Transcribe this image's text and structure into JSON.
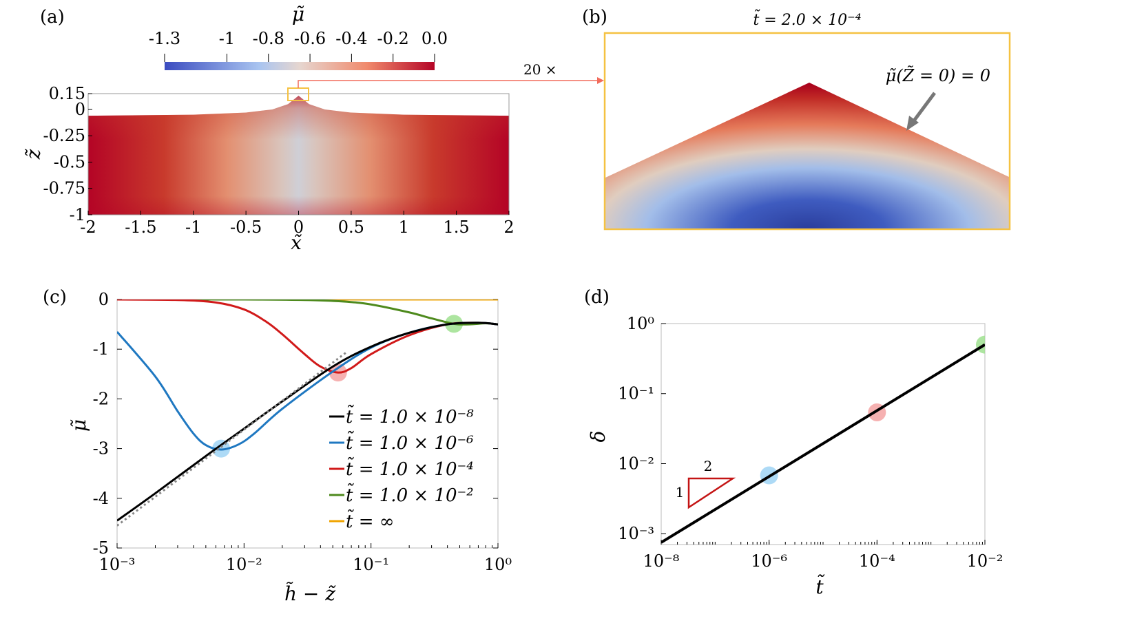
{
  "panels": {
    "a": {
      "label": "(a)"
    },
    "b": {
      "label": "(b)"
    },
    "c": {
      "label": "(c)"
    },
    "d": {
      "label": "(d)"
    }
  },
  "colors": {
    "black": "#000000",
    "blue": "#1f78c1",
    "red": "#d11a1a",
    "green": "#4e8a1d",
    "orange": "#f0a400",
    "cmap_low": "#3b4cc0",
    "cmap_mid": "#dddddd",
    "cmap_high": "#b40426",
    "highlight_box": "#f5c242",
    "arrow": "#f26b5b",
    "gray_arrow": "#777777"
  },
  "colorbar": {
    "title": "μ̃",
    "ticks": [
      "-1.3",
      "-1",
      "-0.8",
      "-0.6",
      "-0.4",
      "-0.2",
      "0.0"
    ],
    "min": -1.3,
    "max": 0.0
  },
  "annotations": {
    "zoom": "20 ×",
    "b_title": "t̃ = 2.0 × 10⁻⁴",
    "b_boundary": "μ̃(Z̃ = 0) = 0",
    "slope_run": "2",
    "slope_rise": "1"
  },
  "chart_data": [
    {
      "panel": "a",
      "type": "heatmap",
      "xlabel": "x̃",
      "ylabel": "z̃",
      "xlim": [
        -2,
        2
      ],
      "ylim": [
        -1,
        0.15
      ],
      "xticks": [
        "-2",
        "-1.5",
        "-1",
        "-0.5",
        "0",
        "0.5",
        "1",
        "1.5",
        "2"
      ],
      "yticks": [
        "0.15",
        "0",
        "-0.25",
        "-0.5",
        "-0.75",
        "-1"
      ],
      "surface": {
        "x": [
          -2,
          -1.5,
          -1,
          -0.5,
          -0.25,
          -0.1,
          0,
          0.1,
          0.25,
          0.5,
          1,
          1.5,
          2
        ],
        "z": [
          -0.06,
          -0.055,
          -0.05,
          -0.03,
          0.0,
          0.05,
          0.13,
          0.05,
          0.0,
          -0.03,
          -0.05,
          -0.055,
          -0.06
        ]
      }
    },
    {
      "panel": "b",
      "type": "heatmap",
      "title": "t̃ = 2.0 × 10⁻⁴"
    },
    {
      "panel": "c",
      "type": "line",
      "xscale": "log",
      "xlim": [
        0.001,
        1
      ],
      "ylim": [
        -5,
        0
      ],
      "xlabel": "h̃ − z̃",
      "ylabel": "μ̃",
      "xticks": [
        "10⁻³",
        "10⁻²",
        "10⁻¹",
        "10⁰"
      ],
      "yticks": [
        "0",
        "-1",
        "-2",
        "-3",
        "-4",
        "-5"
      ],
      "legend_position": "lower-right",
      "series": [
        {
          "name": "t̃ = 1.0 × 10⁻⁸",
          "color": "#000000",
          "x": [
            0.001,
            0.002,
            0.005,
            0.01,
            0.02,
            0.05,
            0.1,
            0.2,
            0.4,
            0.7,
            1.0
          ],
          "y": [
            -4.45,
            -3.9,
            -3.15,
            -2.6,
            -2.05,
            -1.35,
            -0.95,
            -0.67,
            -0.5,
            -0.47,
            -0.5
          ]
        },
        {
          "name": "t̃ = 1.0 × 10⁻⁶",
          "color": "#1f78c1",
          "x": [
            0.001,
            0.002,
            0.003,
            0.004,
            0.005,
            0.0066,
            0.009,
            0.012,
            0.02,
            0.05,
            0.1,
            0.2,
            0.4,
            0.7,
            1.0
          ],
          "y": [
            -0.65,
            -1.55,
            -2.25,
            -2.7,
            -2.93,
            -3.02,
            -2.92,
            -2.7,
            -2.2,
            -1.45,
            -0.97,
            -0.67,
            -0.5,
            -0.47,
            -0.5
          ]
        },
        {
          "name": "t̃ = 1.0 × 10⁻⁴",
          "color": "#d11a1a",
          "x": [
            0.001,
            0.003,
            0.006,
            0.01,
            0.015,
            0.02,
            0.03,
            0.04,
            0.055,
            0.07,
            0.1,
            0.2,
            0.4,
            0.7,
            1.0
          ],
          "y": [
            0,
            -0.01,
            -0.06,
            -0.2,
            -0.45,
            -0.7,
            -1.1,
            -1.35,
            -1.47,
            -1.38,
            -1.1,
            -0.72,
            -0.5,
            -0.47,
            -0.5
          ]
        },
        {
          "name": "t̃ = 1.0 × 10⁻²",
          "color": "#4e8a1d",
          "x": [
            0.001,
            0.01,
            0.03,
            0.06,
            0.1,
            0.2,
            0.3,
            0.45,
            0.6,
            0.8,
            1.0
          ],
          "y": [
            0,
            0,
            -0.01,
            -0.04,
            -0.1,
            -0.26,
            -0.38,
            -0.49,
            -0.5,
            -0.48,
            -0.5
          ]
        },
        {
          "name": "t̃ = ∞",
          "color": "#f0a400",
          "x": [
            0.001,
            1.0
          ],
          "y": [
            0,
            0
          ]
        }
      ],
      "guide_line": {
        "x": [
          0.001,
          0.065
        ],
        "y": [
          -4.55,
          -1.05
        ]
      },
      "markers": [
        {
          "x": 0.0066,
          "y": -3.0,
          "color": "#9fd4f5"
        },
        {
          "x": 0.055,
          "y": -1.47,
          "color": "#f4a3a3"
        },
        {
          "x": 0.45,
          "y": -0.49,
          "color": "#9fe08f"
        }
      ]
    },
    {
      "panel": "d",
      "type": "line",
      "xscale": "log",
      "yscale": "log",
      "xlim": [
        1e-08,
        0.01
      ],
      "ylim": [
        0.0007,
        1.0
      ],
      "xlabel": "t̃",
      "ylabel": "δ",
      "xticks": [
        "10⁻⁸",
        "10⁻⁶",
        "10⁻⁴",
        "10⁻²"
      ],
      "yticks": [
        "10⁰",
        "10⁻¹",
        "10⁻²",
        "10⁻³"
      ],
      "series": [
        {
          "color": "#000000",
          "x": [
            1e-08,
            0.01
          ],
          "y": [
            0.00075,
            0.5
          ]
        }
      ],
      "markers": [
        {
          "x": 1e-06,
          "y": 0.0068,
          "color": "#9fd4f5"
        },
        {
          "x": 0.0001,
          "y": 0.054,
          "color": "#f4a3a3"
        },
        {
          "x": 0.01,
          "y": 0.5,
          "color": "#9fe08f"
        }
      ]
    }
  ]
}
